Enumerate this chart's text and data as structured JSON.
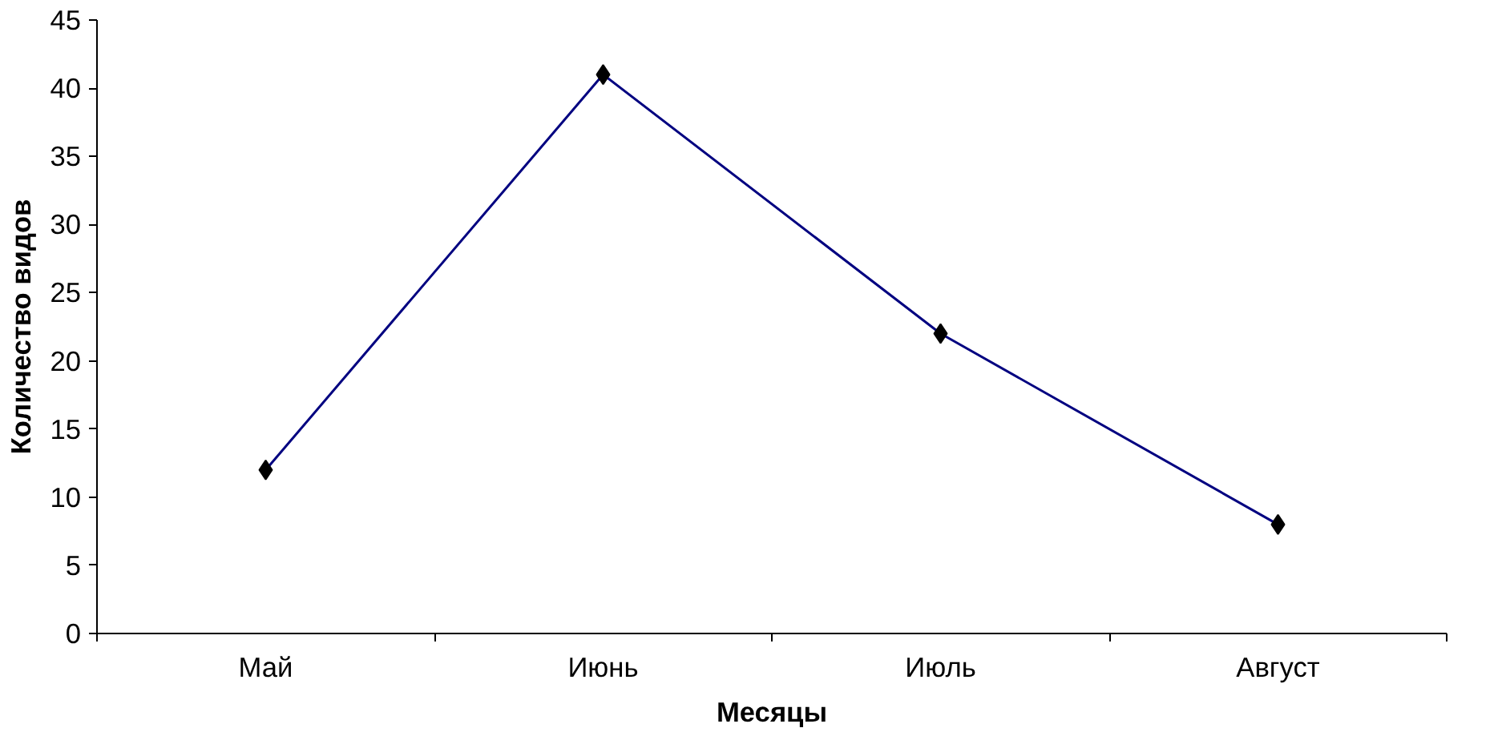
{
  "chart_data": {
    "type": "line",
    "xlabel": "Месяцы",
    "ylabel": "Количество видов",
    "categories": [
      "Май",
      "Июнь",
      "Июль",
      "Август"
    ],
    "series": [
      {
        "color": "#000080",
        "values": [
          12,
          41,
          22,
          8
        ]
      }
    ],
    "ylim": [
      0,
      45
    ],
    "yticks": [
      0,
      5,
      10,
      15,
      20,
      25,
      30,
      35,
      40,
      45
    ],
    "grid": false,
    "marker": "diamond",
    "line_style": "solid"
  }
}
